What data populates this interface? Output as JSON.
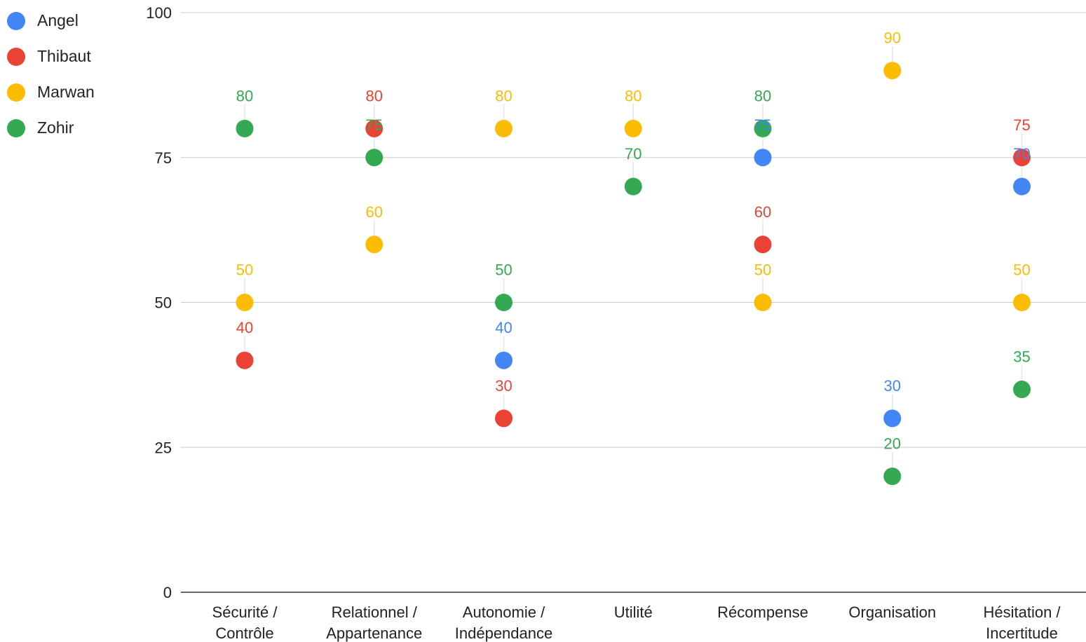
{
  "chart_data": {
    "type": "scatter",
    "title": "",
    "xlabel": "",
    "ylabel": "",
    "ylim": [
      0,
      100
    ],
    "yticks": [
      0,
      25,
      50,
      75,
      100
    ],
    "grid": true,
    "legend_position": "top-left",
    "categories": [
      [
        "Sécurité /",
        "Contrôle"
      ],
      [
        "Relationnel /",
        "Appartenance"
      ],
      [
        "Autonomie /",
        "Indépendance"
      ],
      [
        "Utilité"
      ],
      [
        "Récompense"
      ],
      [
        "Organisation"
      ],
      [
        "Hésitation /",
        "Incertitude"
      ]
    ],
    "series": [
      {
        "name": "Angel",
        "color": "#4285F4",
        "values": [
          null,
          null,
          40,
          null,
          75,
          30,
          70
        ]
      },
      {
        "name": "Thibaut",
        "color": "#EA4335",
        "values": [
          40,
          80,
          30,
          null,
          60,
          null,
          75
        ]
      },
      {
        "name": "Marwan",
        "color": "#FBBC04",
        "values": [
          50,
          60,
          80,
          80,
          50,
          90,
          50
        ]
      },
      {
        "name": "Zohir",
        "color": "#34A853",
        "values": [
          80,
          75,
          50,
          70,
          80,
          20,
          35
        ]
      }
    ]
  }
}
